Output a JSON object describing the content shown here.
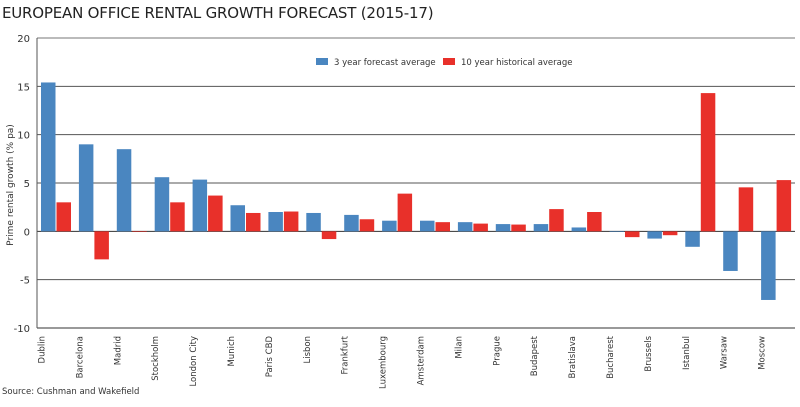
{
  "chart_data": {
    "type": "bar",
    "title": "EUROPEAN OFFICE RENTAL GROWTH FORECAST (2015-17)",
    "xlabel": "",
    "ylabel": "Prime rental growth (% pa)",
    "ylim": [
      -10,
      20
    ],
    "yticks": [
      -10,
      -5,
      0,
      5,
      10,
      15,
      20
    ],
    "grid": true,
    "legend_position": "top-center",
    "categories": [
      "Dublin",
      "Barcelona",
      "Madrid",
      "Stockholm",
      "London City",
      "Munich",
      "Paris CBD",
      "Lisbon",
      "Frankfurt",
      "Luxembourg",
      "Amsterdam",
      "Milan",
      "Prague",
      "Budapest",
      "Bratislava",
      "Bucharest",
      "Brussels",
      "Istanbul",
      "Warsaw",
      "Moscow"
    ],
    "series": [
      {
        "name": "3 year forecast average",
        "color": "#4a86c0",
        "values": [
          15.4,
          9.0,
          8.5,
          5.6,
          5.35,
          2.7,
          2.0,
          1.9,
          1.7,
          1.1,
          1.1,
          0.95,
          0.75,
          0.75,
          0.4,
          0.0,
          -0.75,
          -1.6,
          -4.1,
          -7.1
        ]
      },
      {
        "name": "10 year historical average",
        "color": "#e8302a",
        "values": [
          3.0,
          -2.9,
          0.0,
          3.0,
          3.7,
          1.9,
          2.05,
          -0.8,
          1.25,
          3.9,
          0.95,
          0.8,
          0.7,
          2.3,
          2.0,
          -0.6,
          -0.4,
          14.3,
          4.55,
          5.3
        ]
      }
    ]
  },
  "source": "Source: Cushman and Wakefield"
}
